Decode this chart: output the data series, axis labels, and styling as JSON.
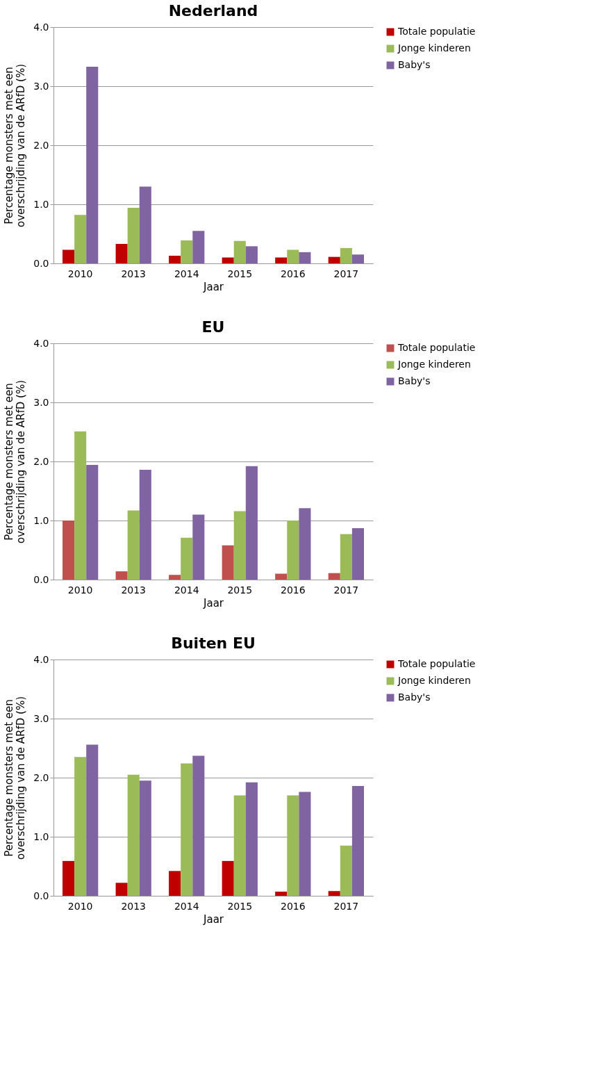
{
  "chart_data": [
    {
      "type": "bar",
      "title": "Nederland",
      "xlabel": "Jaar",
      "ylabel": "Percentage monsters met een\noverschrijding van de ARfD (%)",
      "categories": [
        "2010",
        "2013",
        "2014",
        "2015",
        "2016",
        "2017"
      ],
      "series": [
        {
          "name": "Totale populatie",
          "color": "#c00000",
          "values": [
            0.23,
            0.33,
            0.13,
            0.1,
            0.1,
            0.11
          ]
        },
        {
          "name": "Jonge kinderen",
          "color": "#9bbb59",
          "values": [
            0.82,
            0.94,
            0.39,
            0.38,
            0.23,
            0.26
          ]
        },
        {
          "name": "Baby's",
          "color": "#8064a2",
          "values": [
            3.33,
            1.3,
            0.55,
            0.29,
            0.19,
            0.15
          ]
        }
      ],
      "ylim": [
        0,
        4
      ],
      "yticks": [
        {
          "value": 0,
          "label": "0.0"
        },
        {
          "value": 1,
          "label": "1.0"
        },
        {
          "value": 2,
          "label": "2.0"
        },
        {
          "value": 3,
          "label": "3.0"
        },
        {
          "value": 4,
          "label": "4.0"
        }
      ],
      "grid": "y",
      "legend": "right"
    },
    {
      "type": "bar",
      "title": "EU",
      "xlabel": "Jaar",
      "ylabel": "Percentage monsters met een\noverschrijding van de ARfD (%)",
      "categories": [
        "2010",
        "2013",
        "2014",
        "2015",
        "2016",
        "2017"
      ],
      "series": [
        {
          "name": "Totale populatie",
          "color": "#c0504d",
          "values": [
            1.0,
            0.14,
            0.08,
            0.58,
            0.1,
            0.11
          ]
        },
        {
          "name": "Jonge kinderen",
          "color": "#9bbb59",
          "values": [
            2.51,
            1.17,
            0.71,
            1.16,
            1.0,
            0.77
          ]
        },
        {
          "name": "Baby's",
          "color": "#8064a2",
          "values": [
            1.94,
            1.86,
            1.1,
            1.92,
            1.21,
            0.87
          ]
        }
      ],
      "ylim": [
        0,
        4
      ],
      "yticks": [
        {
          "value": 0,
          "label": "0.0"
        },
        {
          "value": 1,
          "label": "1.0"
        },
        {
          "value": 2,
          "label": "2.0"
        },
        {
          "value": 3,
          "label": "3.0"
        },
        {
          "value": 4,
          "label": "4.0"
        }
      ],
      "grid": "y",
      "legend": "right"
    },
    {
      "type": "bar",
      "title": "Buiten EU",
      "xlabel": "Jaar",
      "ylabel": "Percentage monsters met een\noverschrijding van de ARfD (%)",
      "categories": [
        "2010",
        "2013",
        "2014",
        "2015",
        "2016",
        "2017"
      ],
      "series": [
        {
          "name": "Totale populatie",
          "color": "#c00000",
          "values": [
            0.59,
            0.22,
            0.42,
            0.59,
            0.07,
            0.08
          ]
        },
        {
          "name": "Jonge kinderen",
          "color": "#9bbb59",
          "values": [
            2.35,
            2.05,
            2.24,
            1.7,
            1.7,
            0.85
          ]
        },
        {
          "name": "Baby's",
          "color": "#8064a2",
          "values": [
            2.56,
            1.95,
            2.37,
            1.92,
            1.76,
            1.86
          ]
        }
      ],
      "ylim": [
        0,
        4
      ],
      "yticks": [
        {
          "value": 0,
          "label": "0.0"
        },
        {
          "value": 1,
          "label": "1.0"
        },
        {
          "value": 2,
          "label": "2.0"
        },
        {
          "value": 3,
          "label": "3.0"
        },
        {
          "value": 4,
          "label": "4.0"
        }
      ],
      "grid": "y",
      "legend": "right"
    }
  ]
}
